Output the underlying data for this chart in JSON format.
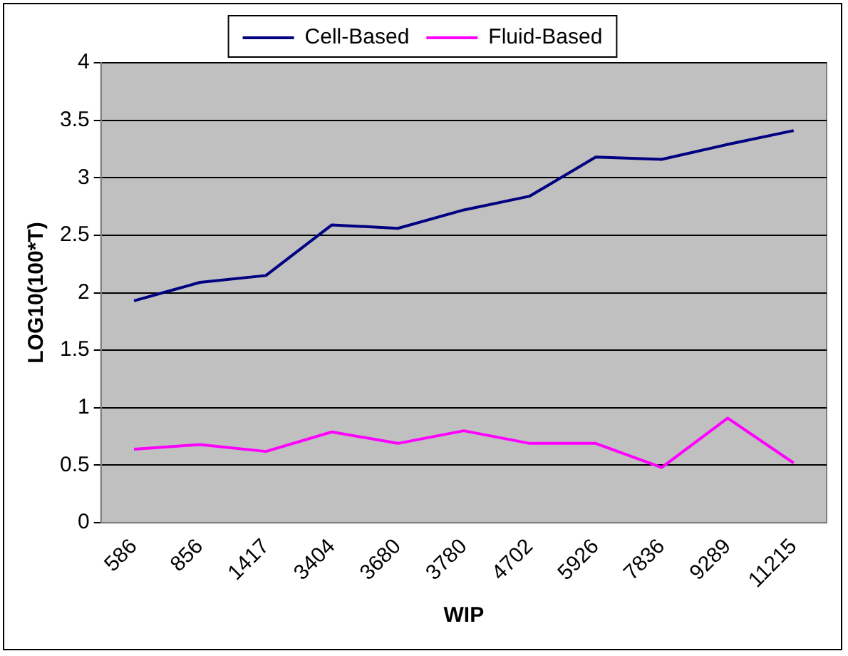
{
  "chart_data": {
    "type": "line",
    "xlabel": "WIP",
    "ylabel": "LOG10(100*T)",
    "categories": [
      "586",
      "856",
      "1417",
      "3404",
      "3680",
      "3780",
      "4702",
      "5926",
      "7836",
      "9289",
      "11215"
    ],
    "series": [
      {
        "name": "Cell-Based",
        "color": "#000080",
        "values": [
          1.93,
          2.09,
          2.15,
          2.59,
          2.56,
          2.72,
          2.84,
          3.18,
          3.16,
          3.29,
          3.41
        ]
      },
      {
        "name": "Fluid-Based",
        "color": "#ff00ff",
        "values": [
          0.64,
          0.68,
          0.62,
          0.79,
          0.69,
          0.8,
          0.69,
          0.69,
          0.48,
          0.91,
          0.52
        ]
      }
    ],
    "ylim": [
      0,
      4
    ],
    "yticks": [
      0,
      0.5,
      1,
      1.5,
      2,
      2.5,
      3,
      3.5,
      4
    ],
    "grid": "y",
    "legend": "top",
    "marker": "none",
    "line_style": "solid"
  }
}
